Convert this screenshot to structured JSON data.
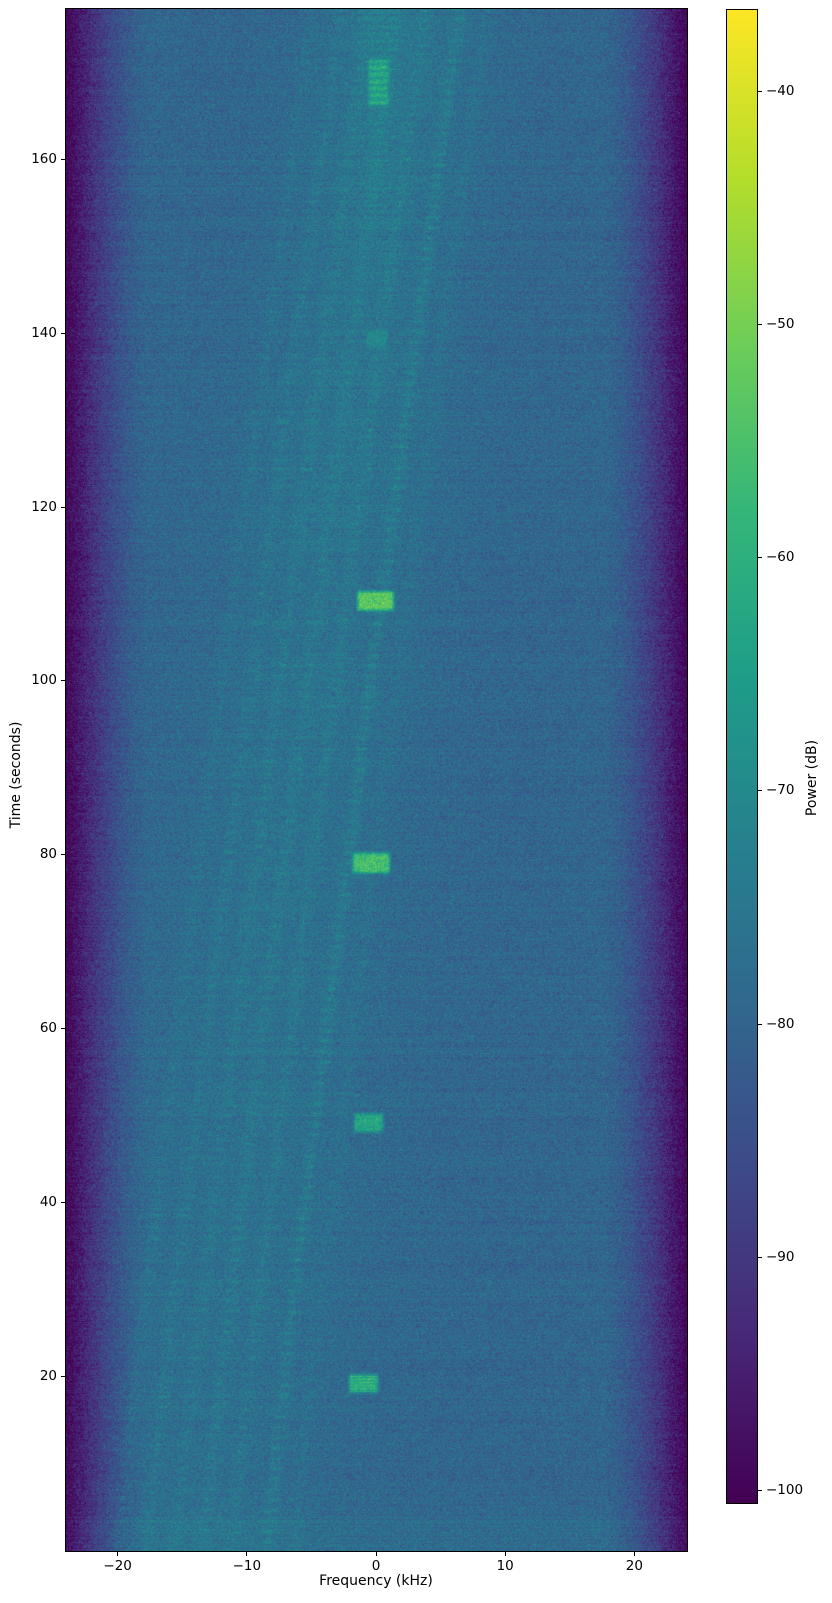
{
  "chart_data": {
    "type": "heatmap",
    "title": "",
    "xlabel": "Frequency (kHz)",
    "ylabel": "Time (seconds)",
    "colorbar_label": "Power (dB)",
    "xlim": [
      -24,
      24
    ],
    "ylim": [
      0,
      177.3
    ],
    "clim": [
      -100.5,
      -36.5
    ],
    "grid": false,
    "legend": "none",
    "background_color": "#ffffff",
    "spine_color": "#000000",
    "colormap": "viridis",
    "viridis_stops": [
      [
        68,
        1,
        84
      ],
      [
        72,
        40,
        120
      ],
      [
        62,
        74,
        137
      ],
      [
        49,
        104,
        142
      ],
      [
        38,
        130,
        142
      ],
      [
        31,
        158,
        137
      ],
      [
        53,
        183,
        121
      ],
      [
        110,
        206,
        88
      ],
      [
        181,
        222,
        43
      ],
      [
        253,
        231,
        37
      ]
    ],
    "x_ticks": [
      {
        "value": -20,
        "label": "−20"
      },
      {
        "value": -10,
        "label": "−10"
      },
      {
        "value": 0,
        "label": "0"
      },
      {
        "value": 10,
        "label": "10"
      },
      {
        "value": 20,
        "label": "20"
      }
    ],
    "y_ticks": [
      {
        "value": 20,
        "label": "20"
      },
      {
        "value": 40,
        "label": "40"
      },
      {
        "value": 60,
        "label": "60"
      },
      {
        "value": 80,
        "label": "80"
      },
      {
        "value": 100,
        "label": "100"
      },
      {
        "value": 120,
        "label": "120"
      },
      {
        "value": 140,
        "label": "140"
      },
      {
        "value": 160,
        "label": "160"
      }
    ],
    "colorbar_ticks": [
      {
        "value": -40,
        "label": "−40"
      },
      {
        "value": -50,
        "label": "−50"
      },
      {
        "value": -60,
        "label": "−60"
      },
      {
        "value": -70,
        "label": "−70"
      },
      {
        "value": -80,
        "label": "−80"
      },
      {
        "value": -90,
        "label": "−90"
      },
      {
        "value": -100,
        "label": "−100"
      }
    ],
    "noise_floor": {
      "base_db": -79.5,
      "pixel_sigma_db": 3.2,
      "row_sigma_db": 0.7,
      "edge_rolloff_start_khz": 17.5,
      "edge_rolloff_width_khz": 6.5,
      "edge_rolloff_drop_db": 21,
      "bottom_band_below_s": 4,
      "bottom_band_boost_db": 1.5,
      "seed": 1234567
    },
    "broad_energy_drift": {
      "center_khz_at_t0": -14,
      "center_khz_at_tmax": 2,
      "sigma_khz_at_t0": 7,
      "sigma_khz_at_tmax": 4.5,
      "boost_db_at_t0": 2.2,
      "boost_db_at_tmax": 3.8
    },
    "chirp_traces": [
      {
        "f0_khz": -20.0,
        "drift_khz_total": 15,
        "amp_db": 2.6,
        "dash_period_s": 1.3
      },
      {
        "f0_khz": -17.8,
        "drift_khz_total": 15,
        "amp_db": 3.0,
        "dash_period_s": 1.1
      },
      {
        "f0_khz": -15.6,
        "drift_khz_total": 15,
        "amp_db": 2.8,
        "dash_period_s": 1.4
      },
      {
        "f0_khz": -13.4,
        "drift_khz_total": 15,
        "amp_db": 3.2,
        "dash_period_s": 1.2
      },
      {
        "f0_khz": -11.2,
        "drift_khz_total": 15,
        "amp_db": 3.0,
        "dash_period_s": 1.0
      },
      {
        "f0_khz": -8.5,
        "drift_khz_total": 15,
        "amp_db": 5.0,
        "dash_period_s": 1.2
      },
      {
        "f0_khz": -6.4,
        "drift_khz_total": 15,
        "amp_db": 2.2,
        "dash_period_s": 1.5
      }
    ],
    "carrier_column": {
      "center_khz": 0.15,
      "sigma_khz": 1.1,
      "starts_at_s": 143,
      "max_boost_db": 4,
      "striation_period_s": 0.85
    },
    "bursts": [
      {
        "t_start_s": 18.2,
        "t_end_s": 20.2,
        "f_start_khz": -2.1,
        "f_end_khz": 0.1,
        "power_db": -61,
        "striation_period_s": 0.35
      },
      {
        "t_start_s": 48.2,
        "t_end_s": 50.2,
        "f_start_khz": -1.7,
        "f_end_khz": 0.5,
        "power_db": -63,
        "striation_period_s": 0
      },
      {
        "t_start_s": 78.0,
        "t_end_s": 80.2,
        "f_start_khz": -1.8,
        "f_end_khz": 1.0,
        "power_db": -56,
        "striation_period_s": 0
      },
      {
        "t_start_s": 108.2,
        "t_end_s": 110.3,
        "f_start_khz": -1.45,
        "f_end_khz": 1.3,
        "power_db": -53,
        "striation_period_s": 0
      },
      {
        "t_start_s": 138.3,
        "t_end_s": 140.3,
        "f_start_khz": -0.75,
        "f_end_khz": 0.85,
        "power_db": -71,
        "striation_period_s": 0
      },
      {
        "t_start_s": 166.3,
        "t_end_s": 171.5,
        "f_start_khz": -0.6,
        "f_end_khz": 0.9,
        "power_db": -64,
        "striation_period_s": 0.8
      }
    ]
  }
}
